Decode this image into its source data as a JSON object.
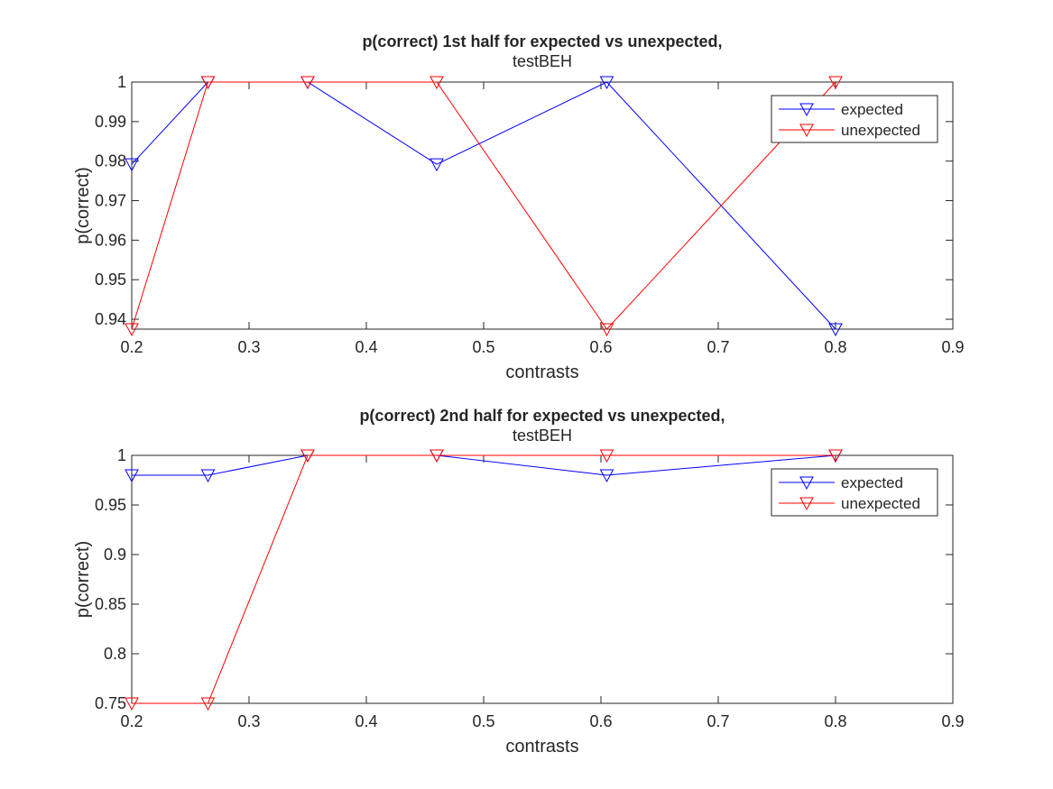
{
  "chart_data": [
    {
      "type": "line",
      "title": "p(correct) 1st half for expected vs unexpected,",
      "subtitle": "testBEH",
      "xlabel": "contrasts",
      "ylabel": "p(correct)",
      "xlim": [
        0.2,
        0.9
      ],
      "ylim": [
        0.9375,
        1.0
      ],
      "xticks": [
        0.2,
        0.3,
        0.4,
        0.5,
        0.6,
        0.7,
        0.8,
        0.9
      ],
      "yticks": [
        0.94,
        0.95,
        0.96,
        0.97,
        0.98,
        0.99,
        1
      ],
      "xtick_labels": [
        "0.2",
        "0.3",
        "0.4",
        "0.5",
        "0.6",
        "0.7",
        "0.8",
        "0.9"
      ],
      "ytick_labels": [
        "0.94",
        "0.95",
        "0.96",
        "0.97",
        "0.98",
        "0.99",
        "1"
      ],
      "x": [
        0.2,
        0.265,
        0.35,
        0.46,
        0.605,
        0.8
      ],
      "series": [
        {
          "name": "expected",
          "color": "#0000ff",
          "marker": "triangle-down",
          "values": [
            0.9792,
            1.0,
            1.0,
            0.9792,
            1.0,
            0.9375
          ]
        },
        {
          "name": "unexpected",
          "color": "#ff0000",
          "marker": "triangle-down",
          "values": [
            0.9375,
            1.0,
            1.0,
            1.0,
            0.9375,
            1.0
          ]
        }
      ],
      "legend": "top-right",
      "grid": false
    },
    {
      "type": "line",
      "title": "p(correct) 2nd half for expected vs unexpected,",
      "subtitle": "testBEH",
      "xlabel": "contrasts",
      "ylabel": "p(correct)",
      "xlim": [
        0.2,
        0.9
      ],
      "ylim": [
        0.75,
        1.0
      ],
      "xticks": [
        0.2,
        0.3,
        0.4,
        0.5,
        0.6,
        0.7,
        0.8,
        0.9
      ],
      "yticks": [
        0.75,
        0.8,
        0.85,
        0.9,
        0.95,
        1
      ],
      "xtick_labels": [
        "0.2",
        "0.3",
        "0.4",
        "0.5",
        "0.6",
        "0.7",
        "0.8",
        "0.9"
      ],
      "ytick_labels": [
        "0.75",
        "0.8",
        "0.85",
        "0.9",
        "0.95",
        "1"
      ],
      "x": [
        0.2,
        0.265,
        0.35,
        0.46,
        0.605,
        0.8
      ],
      "series": [
        {
          "name": "expected",
          "color": "#0000ff",
          "marker": "triangle-down",
          "values": [
            0.98,
            0.98,
            1.0,
            1.0,
            0.98,
            1.0
          ]
        },
        {
          "name": "unexpected",
          "color": "#ff0000",
          "marker": "triangle-down",
          "values": [
            0.75,
            0.75,
            1.0,
            1.0,
            1.0,
            1.0
          ]
        }
      ],
      "legend": "top-right",
      "grid": false
    }
  ]
}
